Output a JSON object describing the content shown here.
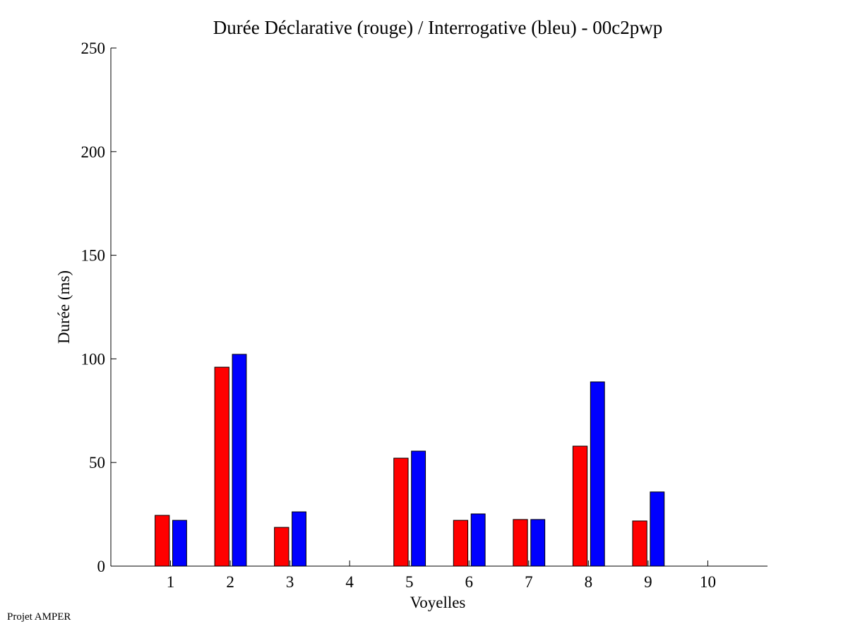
{
  "chart_data": {
    "type": "bar",
    "title": "Durée Déclarative (rouge) / Interrogative (bleu) - 00c2pwp",
    "xlabel": "Voyelles",
    "ylabel": "Durée (ms)",
    "categories": [
      "1",
      "2",
      "3",
      "4",
      "5",
      "6",
      "7",
      "8",
      "9",
      "10"
    ],
    "xlim": [
      0,
      11
    ],
    "ylim": [
      0,
      250
    ],
    "yticks": [
      "0",
      "50",
      "100",
      "150",
      "200",
      "250"
    ],
    "grid": false,
    "series": [
      {
        "name": "Déclarative",
        "color": "#ff0000",
        "values": [
          24.5,
          96,
          18.7,
          0,
          52.1,
          22.1,
          22.5,
          57.9,
          21.8,
          0
        ]
      },
      {
        "name": "Interrogative",
        "color": "#0000ff",
        "values": [
          22.1,
          102.2,
          26.2,
          0,
          55.5,
          25.2,
          22.5,
          88.9,
          35.8,
          0
        ]
      }
    ]
  },
  "footer": "Projet AMPER"
}
